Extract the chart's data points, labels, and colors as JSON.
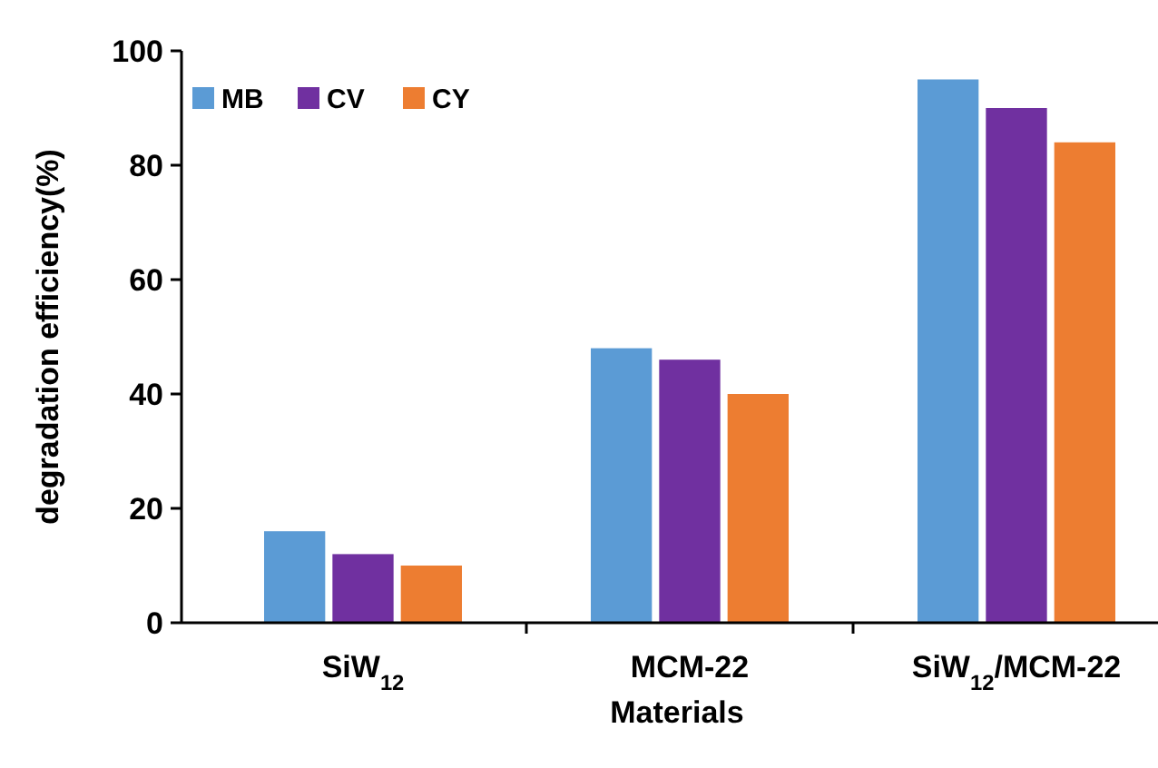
{
  "chart_data": {
    "type": "bar",
    "xlabel": "Materials",
    "ylabel": "degradation efficiency(%)",
    "categories": [
      "SiW$_{12}$",
      "MCM-22",
      "SiW$_{12}$/MCM-22"
    ],
    "series": [
      {
        "name": "MB",
        "color": "#5b9bd5",
        "values": [
          16,
          48,
          95
        ]
      },
      {
        "name": "CV",
        "color": "#7030a0",
        "values": [
          12,
          46,
          90
        ]
      },
      {
        "name": "CY",
        "color": "#ed7d31",
        "values": [
          10,
          40,
          84
        ]
      }
    ],
    "ylim": [
      0,
      100
    ],
    "yticks": [
      0,
      20,
      40,
      60,
      80,
      100
    ],
    "legend": "top left"
  }
}
